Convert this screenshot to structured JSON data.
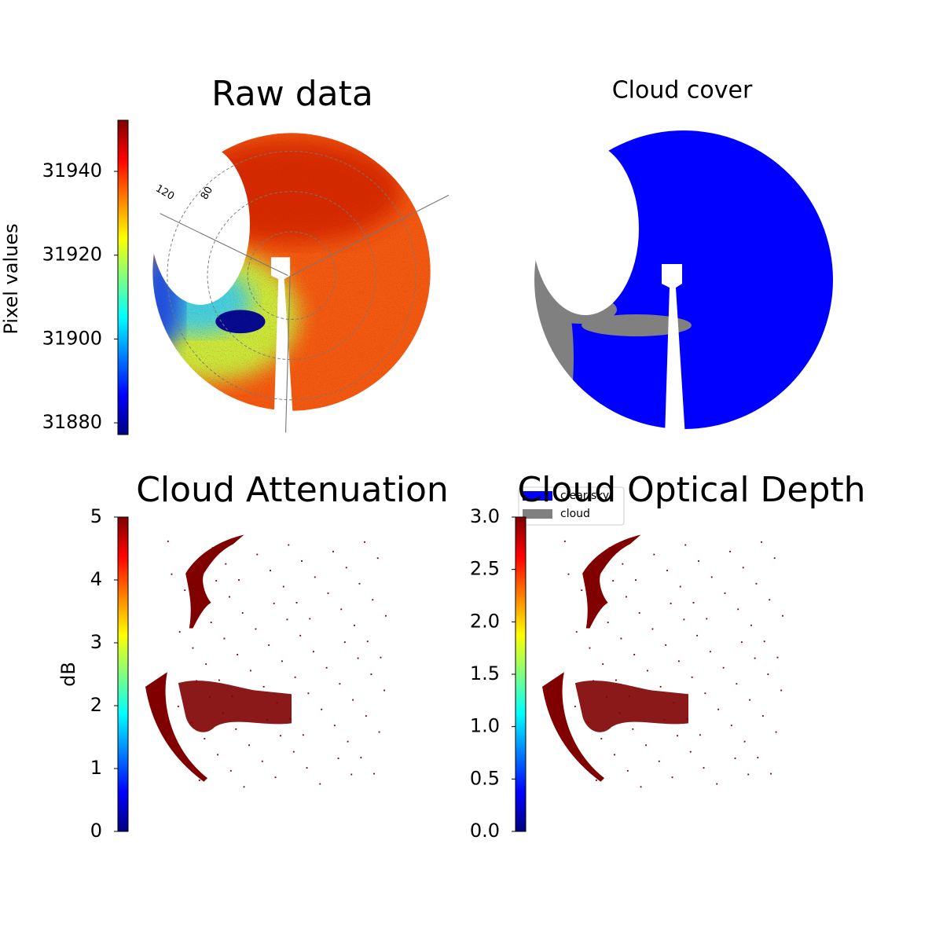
{
  "chart_data": [
    {
      "type": "image",
      "title": "Raw data",
      "polar_labels": [
        "120",
        "80"
      ],
      "colorbar": {
        "label": "Pixel values",
        "colormap": "jet",
        "lim": [
          31877.2,
          31952.2
        ],
        "ticks": [
          31880,
          31900,
          31920,
          31940
        ]
      }
    },
    {
      "type": "image",
      "title": "Cloud cover",
      "legend": {
        "corner": "upper left",
        "series": [
          {
            "name": "clear sky",
            "color": "#0000ff"
          },
          {
            "name": "cloud",
            "color": "#808080"
          }
        ]
      }
    },
    {
      "type": "image",
      "title": "Cloud Attenuation",
      "colorbar": {
        "label": "dB",
        "colormap": "jet",
        "lim": [
          0,
          5
        ],
        "ticks": [
          0,
          1,
          2,
          3,
          4,
          5
        ]
      }
    },
    {
      "type": "image",
      "title": "Cloud Optical Depth",
      "colorbar": {
        "colormap": "jet",
        "lim": [
          0,
          3
        ],
        "ticks": [
          {
            "value": 0,
            "label": "0.0"
          },
          {
            "value": 0.5,
            "label": "0.5"
          },
          {
            "value": 1,
            "label": "1.0"
          },
          {
            "value": 1.5,
            "label": "1.5"
          },
          {
            "value": 2,
            "label": "2.0"
          },
          {
            "value": 2.5,
            "label": "2.5"
          },
          {
            "value": 3,
            "label": "3.0"
          }
        ]
      }
    }
  ]
}
